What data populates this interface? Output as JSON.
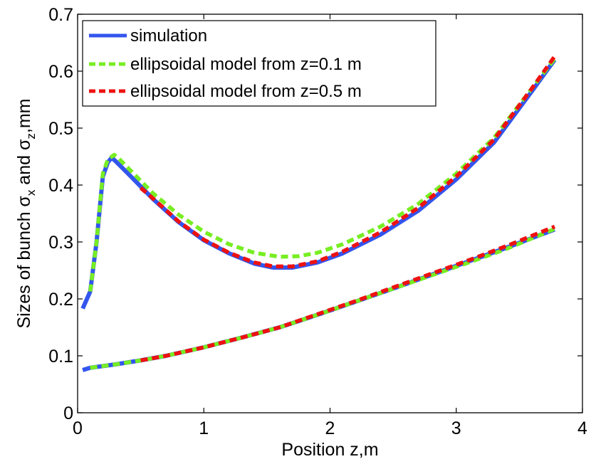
{
  "chart_data": {
    "type": "line",
    "xlabel": "Position z,m",
    "ylabel": {
      "prefix": "Sizes of bunch ",
      "sigma1": "σ",
      "sub1": "x",
      "mid": " and ",
      "sigma2": "σ",
      "sub2": "z",
      "suffix": ",mm"
    },
    "xlim": [
      0,
      4
    ],
    "ylim": [
      0,
      0.7
    ],
    "xticks": [
      "0",
      "1",
      "2",
      "3",
      "4"
    ],
    "yticks": [
      "0",
      "0.1",
      "0.2",
      "0.3",
      "0.4",
      "0.5",
      "0.6",
      "0.7"
    ],
    "grid": false,
    "legend_position": "top-left",
    "series": [
      {
        "name": "simulation",
        "color": "#3355ee",
        "style": "solid",
        "curves": [
          [
            [
              0.04,
              0.183
            ],
            [
              0.1,
              0.213
            ],
            [
              0.15,
              0.3
            ],
            [
              0.2,
              0.415
            ],
            [
              0.24,
              0.44
            ],
            [
              0.27,
              0.448
            ],
            [
              0.3,
              0.442
            ],
            [
              0.4,
              0.42
            ],
            [
              0.6,
              0.375
            ],
            [
              0.8,
              0.335
            ],
            [
              1.0,
              0.303
            ],
            [
              1.2,
              0.28
            ],
            [
              1.4,
              0.262
            ],
            [
              1.55,
              0.255
            ],
            [
              1.7,
              0.255
            ],
            [
              1.9,
              0.264
            ],
            [
              2.1,
              0.28
            ],
            [
              2.4,
              0.313
            ],
            [
              2.7,
              0.355
            ],
            [
              3.0,
              0.41
            ],
            [
              3.3,
              0.475
            ],
            [
              3.6,
              0.565
            ],
            [
              3.78,
              0.62
            ]
          ],
          [
            [
              0.04,
              0.075
            ],
            [
              0.1,
              0.079
            ],
            [
              0.3,
              0.085
            ],
            [
              0.5,
              0.092
            ],
            [
              0.7,
              0.1
            ],
            [
              1.0,
              0.115
            ],
            [
              1.3,
              0.132
            ],
            [
              1.6,
              0.15
            ],
            [
              1.9,
              0.172
            ],
            [
              2.2,
              0.195
            ],
            [
              2.5,
              0.218
            ],
            [
              2.8,
              0.242
            ],
            [
              3.1,
              0.266
            ],
            [
              3.4,
              0.29
            ],
            [
              3.78,
              0.322
            ]
          ]
        ]
      },
      {
        "name": "ellipsoidal model from z=0.1 m",
        "color": "#77ee22",
        "style": "dashed",
        "curves": [
          [
            [
              0.1,
              0.213
            ],
            [
              0.15,
              0.3
            ],
            [
              0.2,
              0.42
            ],
            [
              0.24,
              0.445
            ],
            [
              0.29,
              0.453
            ],
            [
              0.32,
              0.448
            ],
            [
              0.4,
              0.43
            ],
            [
              0.6,
              0.385
            ],
            [
              0.8,
              0.348
            ],
            [
              1.0,
              0.318
            ],
            [
              1.2,
              0.296
            ],
            [
              1.4,
              0.281
            ],
            [
              1.6,
              0.274
            ],
            [
              1.75,
              0.275
            ],
            [
              1.9,
              0.281
            ],
            [
              2.1,
              0.296
            ],
            [
              2.4,
              0.327
            ],
            [
              2.7,
              0.367
            ],
            [
              3.0,
              0.42
            ],
            [
              3.3,
              0.483
            ],
            [
              3.6,
              0.57
            ],
            [
              3.78,
              0.622
            ]
          ],
          [
            [
              0.1,
              0.079
            ],
            [
              0.3,
              0.085
            ],
            [
              0.5,
              0.092
            ],
            [
              0.7,
              0.1
            ],
            [
              1.0,
              0.115
            ],
            [
              1.3,
              0.132
            ],
            [
              1.6,
              0.15
            ],
            [
              1.9,
              0.172
            ],
            [
              2.2,
              0.195
            ],
            [
              2.5,
              0.218
            ],
            [
              2.8,
              0.241
            ],
            [
              3.1,
              0.264
            ],
            [
              3.4,
              0.288
            ],
            [
              3.78,
              0.323
            ]
          ]
        ]
      },
      {
        "name": "ellipsoidal model from z=0.5 m",
        "color": "#ee1111",
        "style": "dashed",
        "curves": [
          [
            [
              0.5,
              0.395
            ],
            [
              0.6,
              0.376
            ],
            [
              0.8,
              0.336
            ],
            [
              1.0,
              0.304
            ],
            [
              1.2,
              0.281
            ],
            [
              1.4,
              0.264
            ],
            [
              1.55,
              0.257
            ],
            [
              1.7,
              0.257
            ],
            [
              1.9,
              0.266
            ],
            [
              2.1,
              0.283
            ],
            [
              2.4,
              0.317
            ],
            [
              2.7,
              0.36
            ],
            [
              3.0,
              0.415
            ],
            [
              3.3,
              0.48
            ],
            [
              3.6,
              0.57
            ],
            [
              3.78,
              0.626
            ]
          ],
          [
            [
              0.5,
              0.092
            ],
            [
              0.7,
              0.1
            ],
            [
              1.0,
              0.115
            ],
            [
              1.3,
              0.132
            ],
            [
              1.6,
              0.15
            ],
            [
              1.9,
              0.173
            ],
            [
              2.2,
              0.196
            ],
            [
              2.5,
              0.22
            ],
            [
              2.8,
              0.244
            ],
            [
              3.1,
              0.268
            ],
            [
              3.4,
              0.293
            ],
            [
              3.78,
              0.327
            ]
          ]
        ]
      }
    ]
  }
}
